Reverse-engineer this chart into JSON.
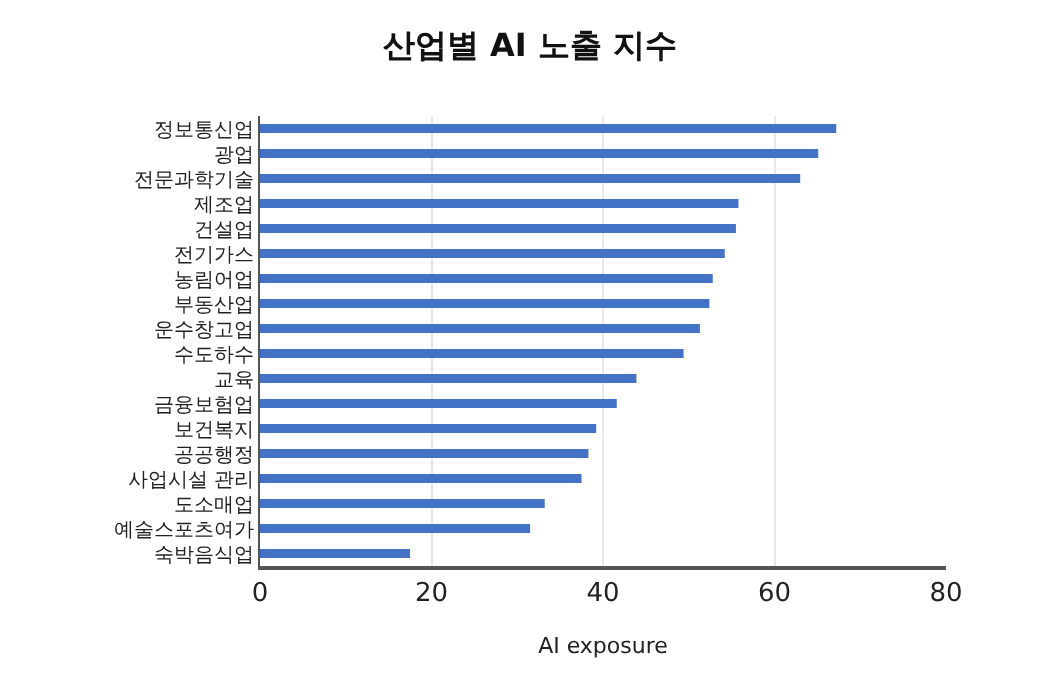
{
  "chart_data": {
    "type": "bar",
    "orientation": "horizontal",
    "title": "산업별 AI 노출 지수",
    "xlabel": "AI exposure",
    "categories": [
      "정보통신업",
      "광업",
      "전문과학기술",
      "제조업",
      "건설업",
      "전기가스",
      "농림어업",
      "부동산업",
      "운수창고업",
      "수도하수",
      "교육",
      "금융보험업",
      "보건복지",
      "공공행정",
      "사업시설 관리",
      "도소매업",
      "예술스포츠여가",
      "숙박음식업"
    ],
    "values": [
      67.2,
      65.1,
      63.0,
      55.8,
      55.5,
      54.2,
      52.8,
      52.4,
      51.3,
      49.4,
      43.9,
      41.6,
      39.2,
      38.3,
      37.5,
      33.2,
      31.5,
      17.5
    ],
    "color": "#4472c4",
    "xlim": [
      0,
      80
    ],
    "xticks": [
      0,
      20,
      40,
      60,
      80
    ],
    "grid": "x"
  }
}
